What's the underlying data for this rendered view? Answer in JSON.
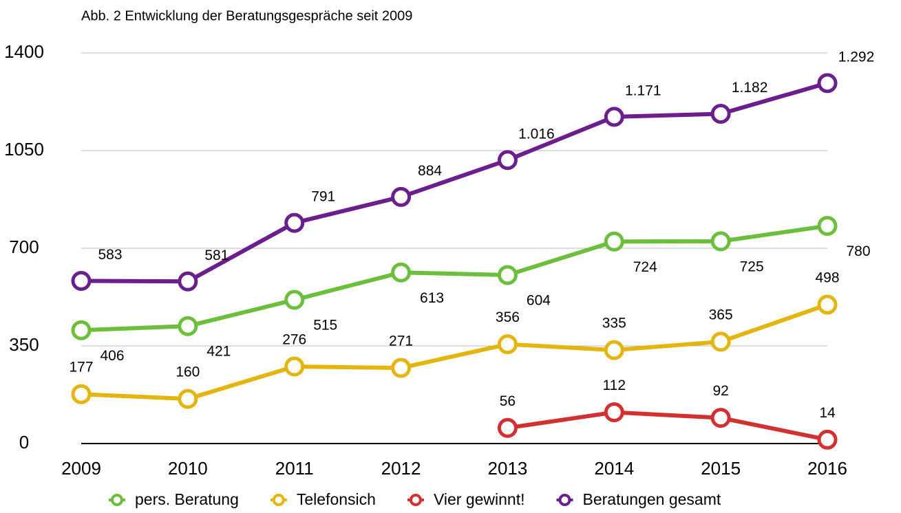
{
  "chart_data": {
    "type": "line",
    "title": "Abb. 2 Entwicklung der Beratungsgespräche seit 2009",
    "categories": [
      "2009",
      "2010",
      "2011",
      "2012",
      "2013",
      "2014",
      "2015",
      "2016"
    ],
    "ylim": [
      0,
      1400
    ],
    "yticks": [
      0,
      350,
      700,
      1050,
      1400
    ],
    "grid": true,
    "legend": "bottom",
    "series": [
      {
        "name": "pers. Beratung",
        "color": "#6cbf3c",
        "values": [
          406,
          421,
          515,
          613,
          604,
          724,
          725,
          780
        ]
      },
      {
        "name": "Telefonsich",
        "color": "#e3b50e",
        "values": [
          177,
          160,
          276,
          271,
          356,
          335,
          365,
          498
        ]
      },
      {
        "name": "Vier gewinnt!",
        "color": "#d23131",
        "values": [
          null,
          null,
          null,
          null,
          56,
          112,
          92,
          14
        ]
      },
      {
        "name": "Beratungen gesamt",
        "color": "#6b1f8c",
        "values": [
          583,
          581,
          791,
          884,
          1016,
          1171,
          1182,
          1292
        ],
        "value_labels": [
          "583",
          "581",
          "791",
          "884",
          "1.016",
          "1.171",
          "1.182",
          "1.292"
        ]
      }
    ]
  }
}
